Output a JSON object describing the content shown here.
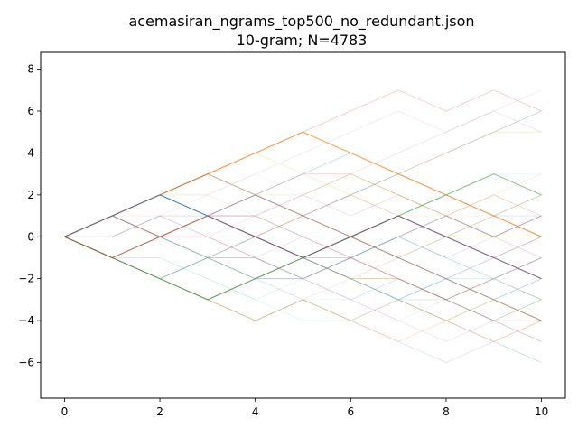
{
  "chart_data": {
    "type": "line",
    "title": "acemasiran_ngrams_top500_no_redundant.json",
    "subtitle": "10-gram; N=4783",
    "xlabel": "",
    "ylabel": "",
    "xlim": [
      -0.5,
      10.5
    ],
    "ylim": [
      -7.7,
      8.8
    ],
    "xticks": [
      0,
      2,
      4,
      6,
      8,
      10
    ],
    "yticks": [
      -6,
      -4,
      -2,
      0,
      2,
      4,
      6,
      8
    ],
    "grid": false,
    "legend": "none",
    "highlight_series": [
      {
        "color": "#ff7f0e",
        "opacity": 0.75,
        "x": [
          0,
          1,
          2,
          3,
          4,
          5,
          6,
          7,
          8,
          9,
          10
        ],
        "y": [
          0,
          1,
          2,
          3,
          4,
          5,
          4,
          3,
          2,
          1,
          0
        ]
      },
      {
        "color": "#2ca02c",
        "opacity": 0.6,
        "x": [
          0,
          1,
          2,
          3,
          4,
          5,
          6,
          7,
          8,
          9,
          10
        ],
        "y": [
          0,
          -1,
          -2,
          -3,
          -2,
          -1,
          0,
          1,
          2,
          3,
          2
        ]
      },
      {
        "color": "#1f77b4",
        "opacity": 0.85,
        "x": [
          0,
          1,
          2,
          3,
          4,
          5,
          6,
          7,
          8,
          9,
          10
        ],
        "y": [
          0,
          1,
          2,
          1,
          0,
          -1,
          0,
          1,
          0,
          -1,
          -2
        ]
      },
      {
        "color": "#d62728",
        "opacity": 0.45,
        "x": [
          0,
          1,
          2,
          3,
          4,
          5,
          6,
          7,
          8,
          9,
          10
        ],
        "y": [
          0,
          -1,
          0,
          1,
          0,
          -1,
          0,
          1,
          0,
          -1,
          -2
        ]
      },
      {
        "color": "#8c564b",
        "opacity": 0.45,
        "x": [
          0,
          1,
          2,
          3,
          4,
          5,
          6,
          7,
          8,
          9,
          10
        ],
        "y": [
          0,
          1,
          2,
          3,
          2,
          1,
          0,
          -1,
          -2,
          -3,
          -4
        ]
      }
    ],
    "background_walks": {
      "count": 60,
      "steps": 10,
      "start": 0,
      "palette": [
        "#1f77b4",
        "#ff7f0e",
        "#2ca02c",
        "#d62728",
        "#9467bd",
        "#8c564b",
        "#e377c2",
        "#7f7f7f",
        "#bcbd22",
        "#17becf"
      ]
    }
  }
}
